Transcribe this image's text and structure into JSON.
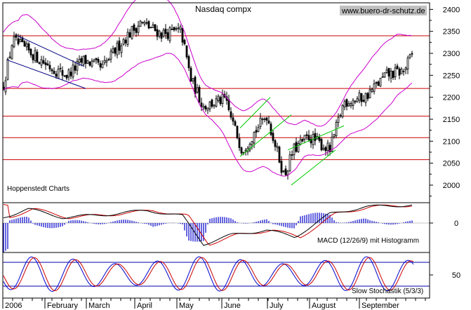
{
  "chart_data": {
    "type": "candlestick",
    "title": "Nasdaq compx",
    "watermark": "www.buero-dr-schutz.de",
    "source_label": "Hoppenstedt Charts",
    "price_panel": {
      "ylim": [
        1960,
        2415
      ],
      "y_ticks": [
        2000,
        2050,
        2100,
        2150,
        2200,
        2250,
        2300,
        2350,
        2400
      ],
      "horizontal_lines": [
        2340,
        2220,
        2157,
        2108,
        2058
      ],
      "horizontal_line_color": "#cc0000",
      "bollinger_color": "#cc00cc",
      "channel_color": "#00cc00",
      "trend_color": "#000080",
      "close_estimates_by_month": {
        "2006": 2240,
        "February": 2280,
        "March": 2320,
        "April": 2360,
        "May": 2300,
        "June": 2110,
        "July": 2080,
        "August": 2080,
        "September": 2240
      },
      "end_value": 2300
    },
    "macd_panel": {
      "label": "MACD (12/26/9) mit Histogramm",
      "y_ticks": [
        0
      ],
      "line_color": "#000000",
      "signal_color": "#cc0000",
      "histogram_color": "#0000cc"
    },
    "stochastic_panel": {
      "label": "Slow Stochastik (5/3/3)",
      "y_ticks": [
        50
      ],
      "k_color": "#0000cc",
      "d_color": "#cc0000",
      "level_color": "#0000aa"
    },
    "x_axis": {
      "labels": [
        "2006",
        "February",
        "March",
        "April",
        "May",
        "June",
        "July",
        "August",
        "September"
      ]
    }
  }
}
